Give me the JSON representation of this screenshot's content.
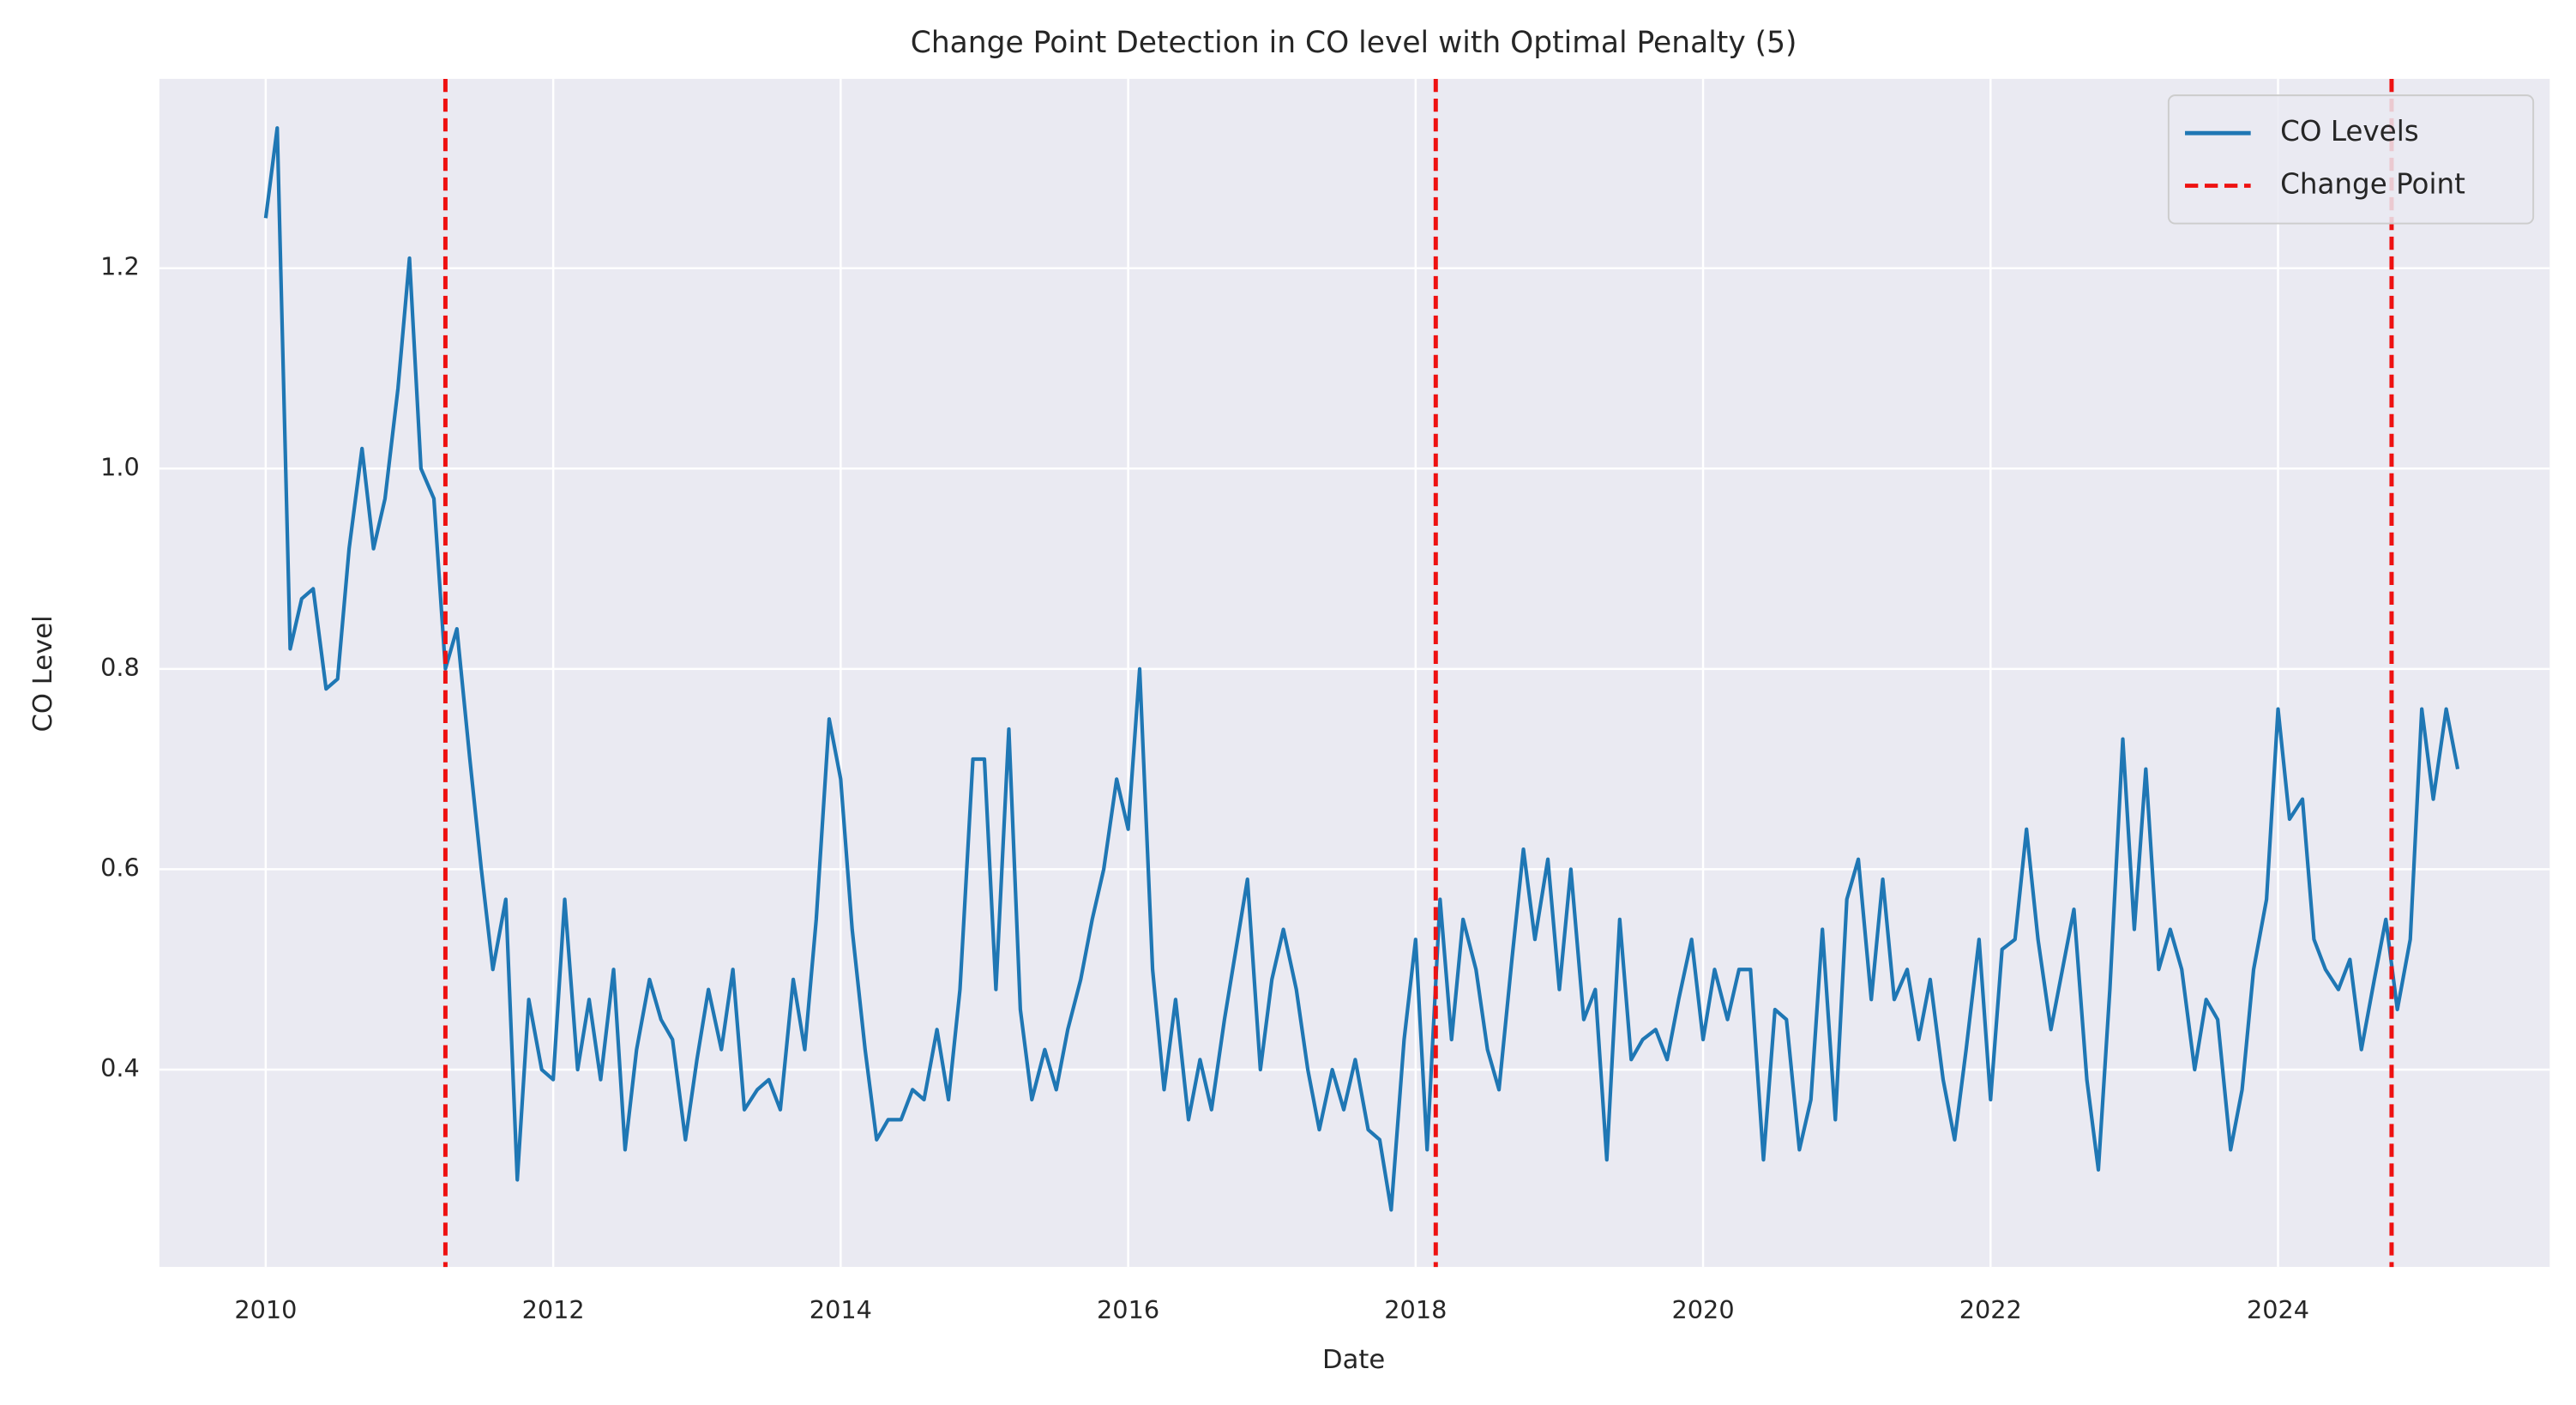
{
  "chart_data": {
    "type": "line",
    "title": "Change Point Detection in CO level with Optimal Penalty (5)",
    "xlabel": "Date",
    "ylabel": "CO Level",
    "x": [
      2010,
      2010.08,
      2010.17,
      2010.25,
      2010.33,
      2010.42,
      2010.5,
      2010.58,
      2010.67,
      2010.75,
      2010.83,
      2010.92,
      2011,
      2011.08,
      2011.17,
      2011.25,
      2011.33,
      2011.42,
      2011.5,
      2011.58,
      2011.67,
      2011.75,
      2011.83,
      2011.92,
      2012,
      2012.08,
      2012.17,
      2012.25,
      2012.33,
      2012.42,
      2012.5,
      2012.58,
      2012.67,
      2012.75,
      2012.83,
      2012.92,
      2013,
      2013.08,
      2013.17,
      2013.25,
      2013.33,
      2013.42,
      2013.5,
      2013.58,
      2013.67,
      2013.75,
      2013.83,
      2013.92,
      2014,
      2014.08,
      2014.17,
      2014.25,
      2014.33,
      2014.42,
      2014.5,
      2014.58,
      2014.67,
      2014.75,
      2014.83,
      2014.92,
      2015,
      2015.08,
      2015.17,
      2015.25,
      2015.33,
      2015.42,
      2015.5,
      2015.58,
      2015.67,
      2015.75,
      2015.83,
      2015.92,
      2016,
      2016.08,
      2016.17,
      2016.25,
      2016.33,
      2016.42,
      2016.5,
      2016.58,
      2016.67,
      2016.75,
      2016.83,
      2016.92,
      2017,
      2017.08,
      2017.17,
      2017.25,
      2017.33,
      2017.42,
      2017.5,
      2017.58,
      2017.67,
      2017.75,
      2017.83,
      2017.92,
      2018,
      2018.08,
      2018.17,
      2018.25,
      2018.33,
      2018.42,
      2018.5,
      2018.58,
      2018.67,
      2018.75,
      2018.83,
      2018.92,
      2019,
      2019.08,
      2019.17,
      2019.25,
      2019.33,
      2019.42,
      2019.5,
      2019.58,
      2019.67,
      2019.75,
      2019.83,
      2019.92,
      2020,
      2020.08,
      2020.17,
      2020.25,
      2020.33,
      2020.42,
      2020.5,
      2020.58,
      2020.67,
      2020.75,
      2020.83,
      2020.92,
      2021,
      2021.08,
      2021.17,
      2021.25,
      2021.33,
      2021.42,
      2021.5,
      2021.58,
      2021.67,
      2021.75,
      2021.83,
      2021.92,
      2022,
      2022.08,
      2022.17,
      2022.25,
      2022.33,
      2022.42,
      2022.5,
      2022.58,
      2022.67,
      2022.75,
      2022.83,
      2022.92,
      2023,
      2023.08,
      2023.17,
      2023.25,
      2023.33,
      2023.42,
      2023.5,
      2023.58,
      2023.67,
      2023.75,
      2023.83,
      2023.92,
      2024,
      2024.08,
      2024.17,
      2024.25,
      2024.33,
      2024.42,
      2024.5,
      2024.58,
      2024.67,
      2024.75,
      2024.83,
      2024.92,
      2025,
      2025.08,
      2025.17,
      2025.25
    ],
    "series": [
      {
        "name": "CO Levels",
        "color": "#1f77b4",
        "values": [
          1.25,
          1.34,
          0.82,
          0.87,
          0.88,
          0.78,
          0.79,
          0.92,
          1.02,
          0.92,
          0.97,
          1.08,
          1.21,
          1.0,
          0.97,
          0.8,
          0.84,
          0.71,
          0.6,
          0.5,
          0.57,
          0.29,
          0.47,
          0.4,
          0.39,
          0.57,
          0.4,
          0.47,
          0.39,
          0.5,
          0.32,
          0.42,
          0.49,
          0.45,
          0.43,
          0.33,
          0.41,
          0.48,
          0.42,
          0.5,
          0.36,
          0.38,
          0.39,
          0.36,
          0.49,
          0.42,
          0.55,
          0.75,
          0.69,
          0.54,
          0.42,
          0.33,
          0.35,
          0.35,
          0.38,
          0.37,
          0.44,
          0.37,
          0.48,
          0.71,
          0.71,
          0.48,
          0.74,
          0.46,
          0.37,
          0.42,
          0.38,
          0.44,
          0.49,
          0.55,
          0.6,
          0.69,
          0.64,
          0.8,
          0.5,
          0.38,
          0.47,
          0.35,
          0.41,
          0.36,
          0.45,
          0.52,
          0.59,
          0.4,
          0.49,
          0.54,
          0.48,
          0.4,
          0.34,
          0.4,
          0.36,
          0.41,
          0.34,
          0.33,
          0.26,
          0.43,
          0.53,
          0.32,
          0.57,
          0.43,
          0.55,
          0.5,
          0.42,
          0.38,
          0.51,
          0.62,
          0.53,
          0.61,
          0.48,
          0.6,
          0.45,
          0.48,
          0.31,
          0.55,
          0.41,
          0.43,
          0.44,
          0.41,
          0.47,
          0.53,
          0.43,
          0.5,
          0.45,
          0.5,
          0.5,
          0.31,
          0.46,
          0.45,
          0.32,
          0.37,
          0.54,
          0.35,
          0.57,
          0.61,
          0.47,
          0.59,
          0.47,
          0.5,
          0.43,
          0.49,
          0.39,
          0.33,
          0.42,
          0.53,
          0.37,
          0.52,
          0.53,
          0.64,
          0.53,
          0.44,
          0.5,
          0.56,
          0.39,
          0.3,
          0.48,
          0.73,
          0.54,
          0.7,
          0.5,
          0.54,
          0.5,
          0.4,
          0.47,
          0.45,
          0.32,
          0.38,
          0.5,
          0.57,
          0.76,
          0.65,
          0.67,
          0.53,
          0.5,
          0.48,
          0.51,
          0.42,
          0.49,
          0.55,
          0.46,
          0.53,
          0.76,
          0.67,
          0.76,
          0.7
        ]
      }
    ],
    "change_points": {
      "name": "Change Point",
      "color": "#ee1111",
      "values": [
        2011.25,
        2018.14,
        2024.79
      ]
    },
    "xlim": [
      2009.26,
      2025.89
    ],
    "xticks": [
      2010,
      2012,
      2014,
      2016,
      2018,
      2020,
      2022,
      2024
    ],
    "ylim": [
      0.203,
      1.389
    ],
    "yticks": [
      0.4,
      0.6,
      0.8,
      {
        "value": 1,
        "label": "1.0"
      },
      1.2
    ],
    "grid": true,
    "legend": "upper right"
  }
}
